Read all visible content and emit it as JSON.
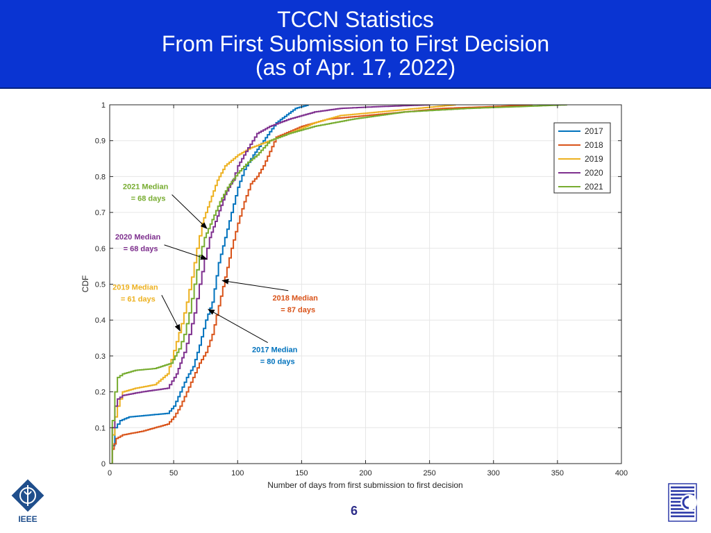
{
  "header": {
    "title_line1": "TCCN Statistics",
    "title_line2": "From First Submission to First Decision",
    "title_line3": "(as of Apr. 17, 2022)",
    "background": "#0a34d2"
  },
  "footer": {
    "page_number": "6",
    "left_logo_icon": "ieee-logo-icon",
    "left_logo_text": "IEEE",
    "right_logo_icon": "comsoc-logo-icon"
  },
  "chart_data": {
    "type": "line",
    "xlabel": "Number of days from first submission to first decision",
    "ylabel": "CDF",
    "xlim": [
      0,
      400
    ],
    "ylim": [
      0,
      1
    ],
    "xticks": [
      0,
      50,
      100,
      150,
      200,
      250,
      300,
      350,
      400
    ],
    "yticks": [
      0,
      0.1,
      0.2,
      0.3,
      0.4,
      0.5,
      0.6,
      0.7,
      0.8,
      0.9,
      1
    ],
    "grid": true,
    "legend_position": "top-right",
    "series": [
      {
        "name": "2017",
        "color": "#0072bd",
        "points": [
          [
            0,
            0
          ],
          [
            2,
            0.05
          ],
          [
            4,
            0.1
          ],
          [
            8,
            0.12
          ],
          [
            15,
            0.13
          ],
          [
            45,
            0.14
          ],
          [
            50,
            0.16
          ],
          [
            55,
            0.2
          ],
          [
            60,
            0.24
          ],
          [
            65,
            0.27
          ],
          [
            70,
            0.33
          ],
          [
            75,
            0.4
          ],
          [
            80,
            0.45
          ],
          [
            85,
            0.56
          ],
          [
            90,
            0.63
          ],
          [
            95,
            0.7
          ],
          [
            100,
            0.77
          ],
          [
            105,
            0.82
          ],
          [
            112,
            0.86
          ],
          [
            120,
            0.9
          ],
          [
            130,
            0.95
          ],
          [
            145,
            0.99
          ],
          [
            155,
            1
          ]
        ]
      },
      {
        "name": "2018",
        "color": "#d95319",
        "points": [
          [
            0,
            0
          ],
          [
            2,
            0.04
          ],
          [
            5,
            0.07
          ],
          [
            10,
            0.08
          ],
          [
            25,
            0.09
          ],
          [
            45,
            0.11
          ],
          [
            50,
            0.13
          ],
          [
            55,
            0.16
          ],
          [
            60,
            0.2
          ],
          [
            65,
            0.24
          ],
          [
            70,
            0.28
          ],
          [
            75,
            0.31
          ],
          [
            80,
            0.36
          ],
          [
            85,
            0.44
          ],
          [
            90,
            0.52
          ],
          [
            95,
            0.6
          ],
          [
            100,
            0.67
          ],
          [
            105,
            0.73
          ],
          [
            110,
            0.78
          ],
          [
            115,
            0.8
          ],
          [
            120,
            0.83
          ],
          [
            125,
            0.87
          ],
          [
            130,
            0.91
          ],
          [
            150,
            0.94
          ],
          [
            170,
            0.96
          ],
          [
            200,
            0.97
          ],
          [
            230,
            0.98
          ],
          [
            260,
            0.99
          ],
          [
            300,
            0.995
          ],
          [
            330,
            1
          ]
        ]
      },
      {
        "name": "2019",
        "color": "#edb120",
        "points": [
          [
            0,
            0
          ],
          [
            2,
            0.08
          ],
          [
            4,
            0.13
          ],
          [
            6,
            0.16
          ],
          [
            10,
            0.2
          ],
          [
            20,
            0.21
          ],
          [
            35,
            0.22
          ],
          [
            45,
            0.25
          ],
          [
            48,
            0.29
          ],
          [
            52,
            0.34
          ],
          [
            56,
            0.39
          ],
          [
            60,
            0.45
          ],
          [
            64,
            0.52
          ],
          [
            68,
            0.6
          ],
          [
            72,
            0.67
          ],
          [
            78,
            0.73
          ],
          [
            84,
            0.79
          ],
          [
            90,
            0.83
          ],
          [
            100,
            0.86
          ],
          [
            110,
            0.88
          ],
          [
            125,
            0.9
          ],
          [
            140,
            0.92
          ],
          [
            160,
            0.95
          ],
          [
            180,
            0.97
          ],
          [
            210,
            0.98
          ],
          [
            240,
            0.99
          ],
          [
            270,
            1
          ]
        ]
      },
      {
        "name": "2020",
        "color": "#7e2f8e",
        "points": [
          [
            0,
            0
          ],
          [
            2,
            0.1
          ],
          [
            4,
            0.16
          ],
          [
            6,
            0.18
          ],
          [
            10,
            0.19
          ],
          [
            25,
            0.2
          ],
          [
            45,
            0.21
          ],
          [
            52,
            0.25
          ],
          [
            58,
            0.31
          ],
          [
            62,
            0.36
          ],
          [
            66,
            0.42
          ],
          [
            70,
            0.5
          ],
          [
            74,
            0.57
          ],
          [
            78,
            0.63
          ],
          [
            84,
            0.69
          ],
          [
            90,
            0.75
          ],
          [
            96,
            0.79
          ],
          [
            100,
            0.83
          ],
          [
            108,
            0.88
          ],
          [
            115,
            0.92
          ],
          [
            125,
            0.94
          ],
          [
            140,
            0.96
          ],
          [
            160,
            0.98
          ],
          [
            180,
            0.99
          ],
          [
            210,
            0.995
          ],
          [
            250,
            1
          ]
        ]
      },
      {
        "name": "2021",
        "color": "#77ac30",
        "points": [
          [
            0,
            0
          ],
          [
            2,
            0.12
          ],
          [
            4,
            0.2
          ],
          [
            6,
            0.24
          ],
          [
            10,
            0.25
          ],
          [
            20,
            0.26
          ],
          [
            35,
            0.265
          ],
          [
            48,
            0.28
          ],
          [
            54,
            0.32
          ],
          [
            58,
            0.36
          ],
          [
            62,
            0.42
          ],
          [
            66,
            0.5
          ],
          [
            70,
            0.58
          ],
          [
            74,
            0.63
          ],
          [
            80,
            0.68
          ],
          [
            86,
            0.73
          ],
          [
            92,
            0.77
          ],
          [
            100,
            0.81
          ],
          [
            108,
            0.84
          ],
          [
            115,
            0.86
          ],
          [
            125,
            0.9
          ],
          [
            140,
            0.92
          ],
          [
            160,
            0.94
          ],
          [
            190,
            0.96
          ],
          [
            230,
            0.98
          ],
          [
            280,
            0.99
          ],
          [
            320,
            0.995
          ],
          [
            357,
            1
          ]
        ]
      }
    ],
    "annotations": [
      {
        "line1": "2021 Median",
        "line2": "= 68 days",
        "color": "#77ac30",
        "target_x": 76,
        "target_y": 0.655,
        "label_x": 28,
        "label_y": 0.765
      },
      {
        "line1": "2020 Median",
        "line2": "= 68 days",
        "color": "#7e2f8e",
        "target_x": 76,
        "target_y": 0.57,
        "label_x": 22,
        "label_y": 0.625
      },
      {
        "line1": "2019 Median",
        "line2": "= 61 days",
        "color": "#edb120",
        "target_x": 55,
        "target_y": 0.37,
        "label_x": 20,
        "label_y": 0.485
      },
      {
        "line1": "2018 Median",
        "line2": "= 87 days",
        "color": "#d95319",
        "target_x": 88,
        "target_y": 0.51,
        "label_x": 145,
        "label_y": 0.455
      },
      {
        "line1": "2017 Median",
        "line2": "= 80 days",
        "color": "#0072bd",
        "target_x": 77,
        "target_y": 0.43,
        "label_x": 129,
        "label_y": 0.31
      }
    ]
  }
}
